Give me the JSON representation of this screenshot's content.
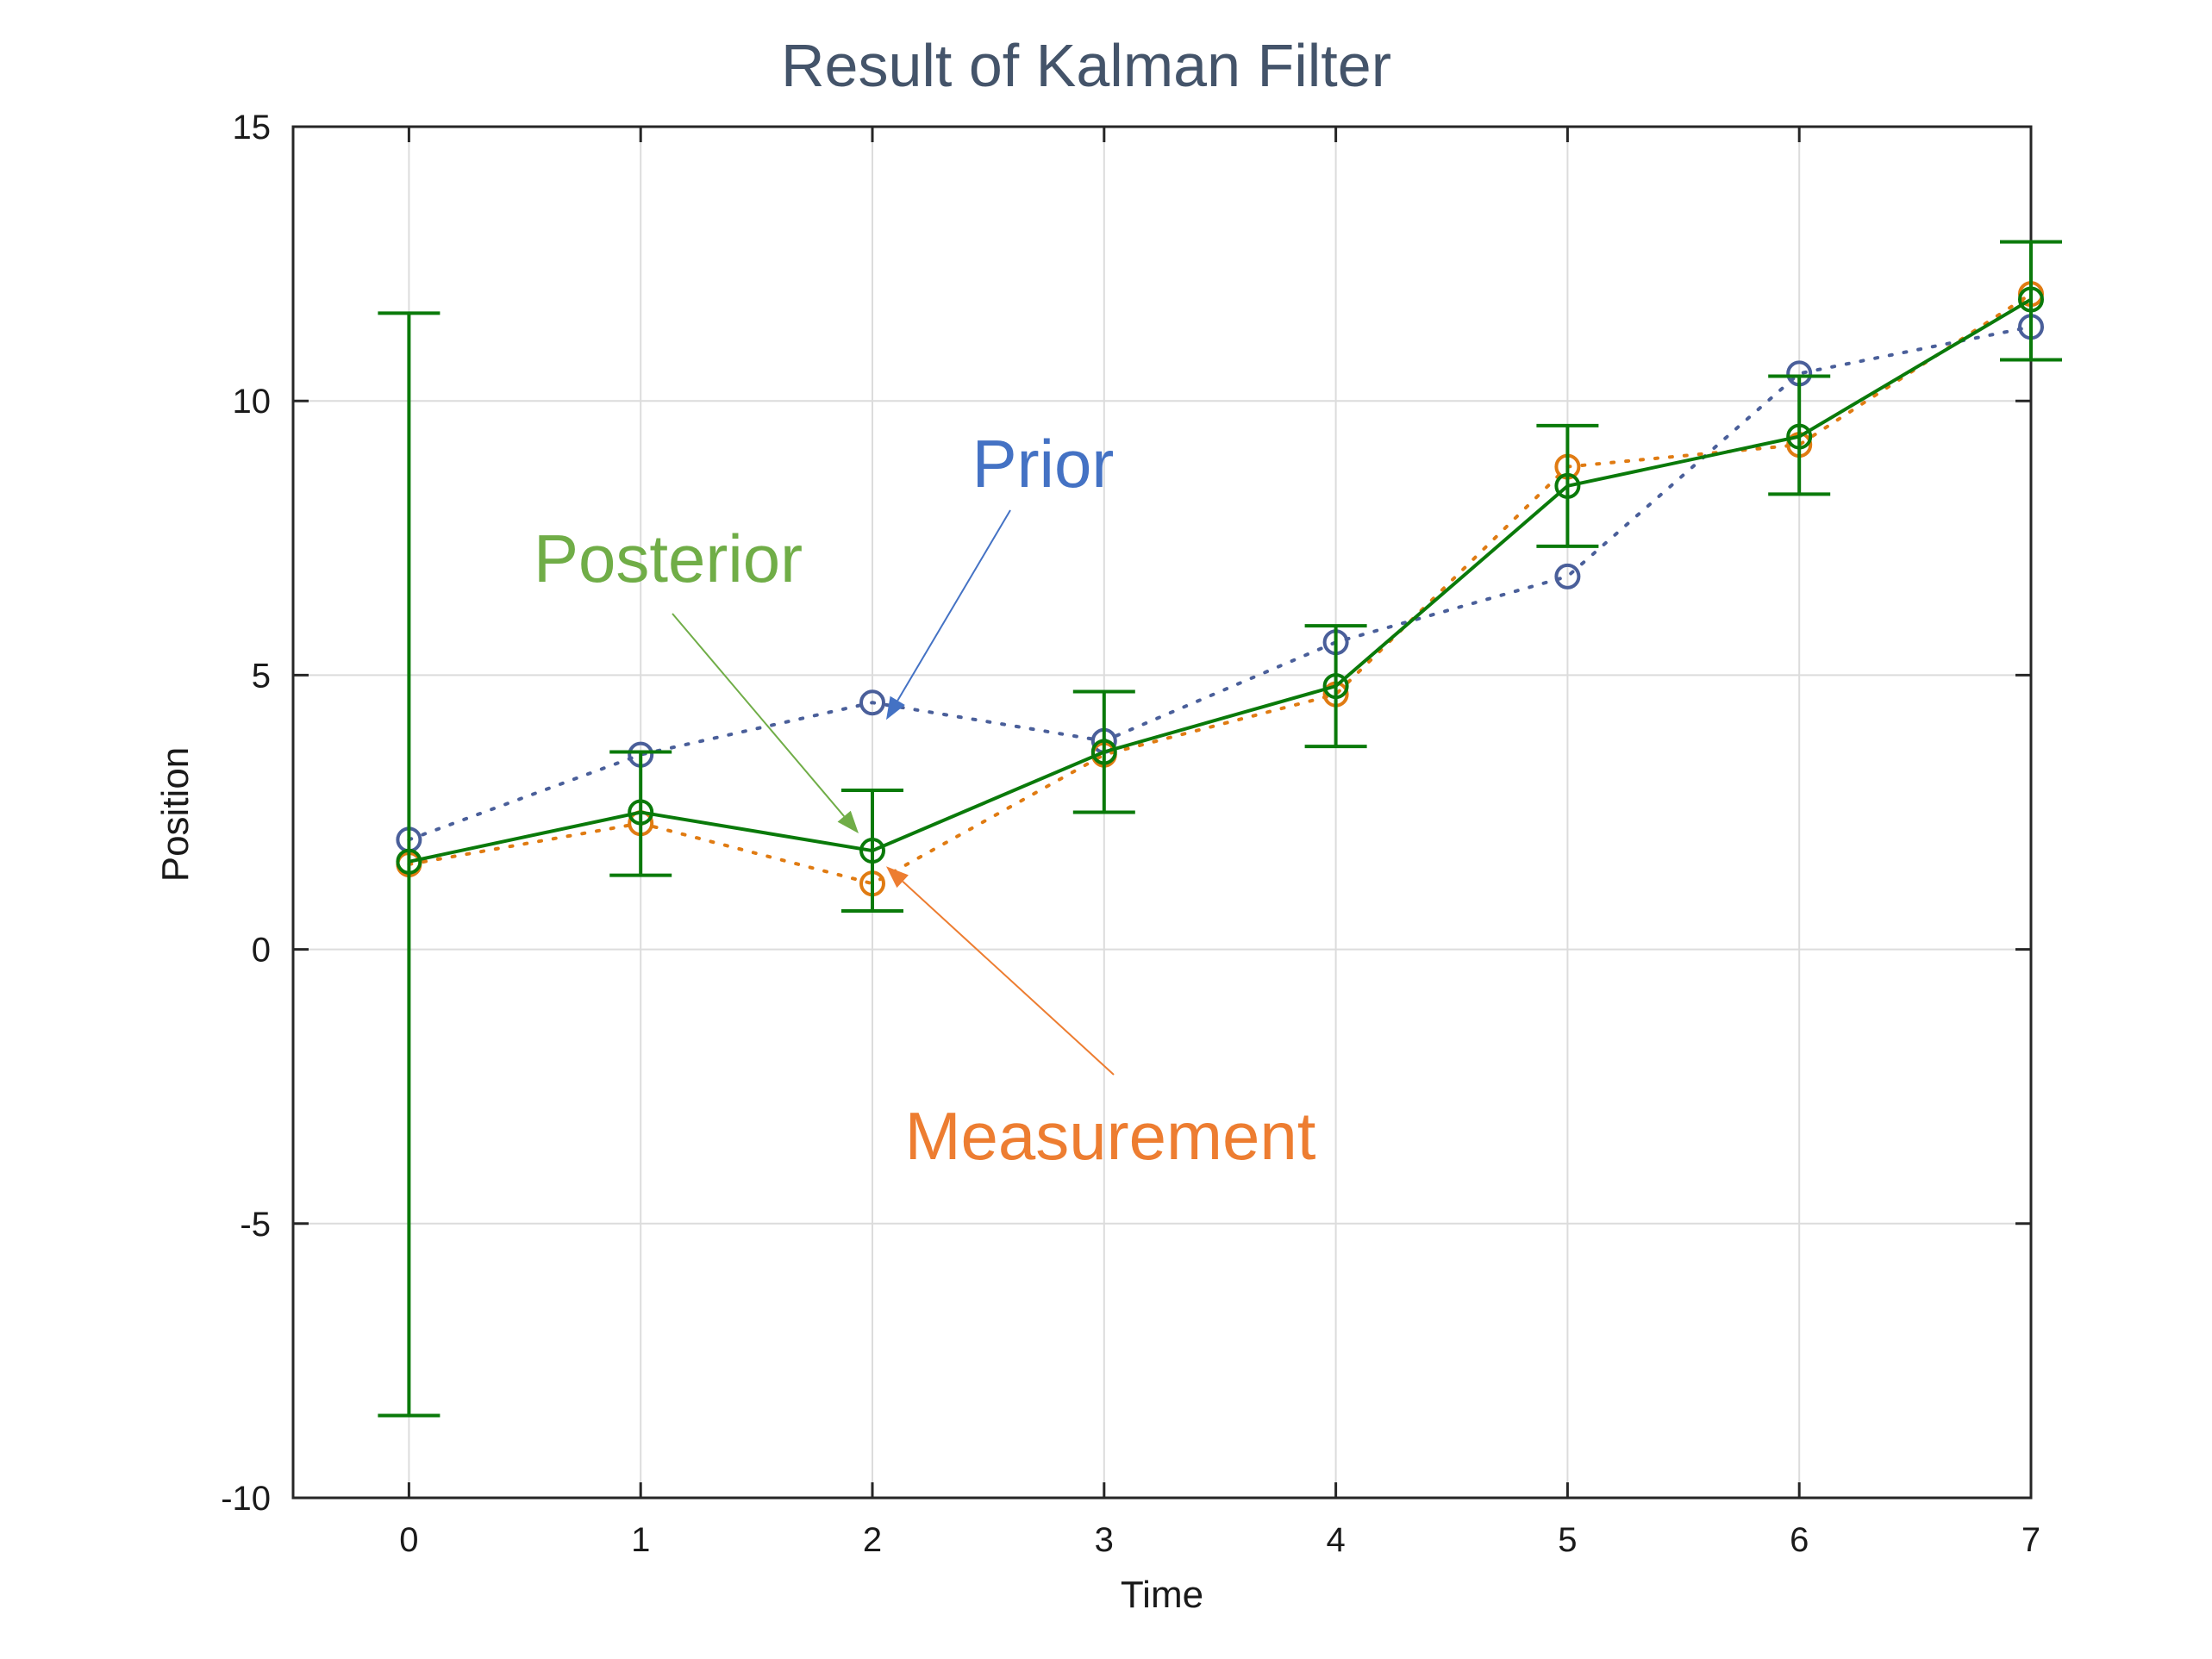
{
  "chart_data": {
    "type": "line",
    "title": "Result of Kalman Filter",
    "xlabel": "Time",
    "ylabel": "Position",
    "xlim": [
      -0.5,
      7
    ],
    "ylim": [
      -10,
      15
    ],
    "x_ticks": [
      "0",
      "1",
      "2",
      "3",
      "4",
      "5",
      "6",
      "7"
    ],
    "y_ticks": [
      "-10",
      "-5",
      "0",
      "5",
      "10",
      "15"
    ],
    "grid": true,
    "x": [
      0,
      1,
      2,
      3,
      4,
      5,
      6,
      7
    ],
    "series": [
      {
        "name": "Prior",
        "color": "#4a5f9a",
        "line_style": "dotted",
        "marker": "circle",
        "values": [
          2.0,
          3.55,
          4.5,
          3.8,
          5.6,
          6.8,
          10.5,
          11.35
        ]
      },
      {
        "name": "Measurement",
        "color": "#e07b12",
        "line_style": "dotted",
        "marker": "circle",
        "values": [
          1.55,
          2.3,
          1.2,
          3.55,
          4.65,
          8.8,
          9.2,
          11.95
        ]
      },
      {
        "name": "Posterior",
        "color": "#0a7a0a",
        "line_style": "solid",
        "marker": "circle",
        "values": [
          1.6,
          2.5,
          1.8,
          3.6,
          4.8,
          8.45,
          9.35,
          11.85
        ],
        "error_low": [
          -8.5,
          1.35,
          0.7,
          2.5,
          3.7,
          7.35,
          8.3,
          10.75
        ],
        "error_high": [
          11.6,
          3.6,
          2.9,
          4.7,
          5.9,
          9.55,
          10.45,
          12.9
        ]
      }
    ],
    "annotations": [
      {
        "text": "Prior",
        "color": "#4472c4",
        "points_to": {
          "x": 2,
          "y": 4.5
        }
      },
      {
        "text": "Posterior",
        "color": "#70ad47",
        "points_to": {
          "x": 2,
          "y": 1.8
        }
      },
      {
        "text": "Measurement",
        "color": "#ed7d31",
        "points_to": {
          "x": 2,
          "y": 1.2
        }
      }
    ],
    "title_color": "#44546a"
  }
}
